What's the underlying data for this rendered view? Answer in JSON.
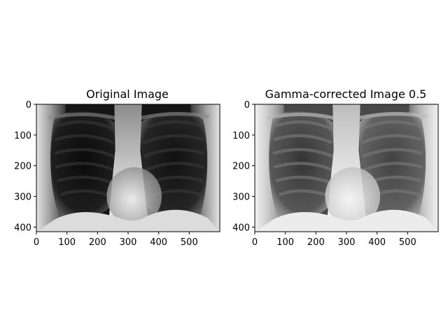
{
  "panels": [
    {
      "title": "Original Image",
      "gamma": 1.0,
      "x_ticks": [
        "0",
        "100",
        "200",
        "300",
        "400",
        "500"
      ],
      "y_ticks": [
        "0",
        "100",
        "200",
        "300",
        "400"
      ]
    },
    {
      "title": "Gamma-corrected Image 0.5",
      "gamma": 0.5,
      "x_ticks": [
        "0",
        "100",
        "200",
        "300",
        "400",
        "500"
      ],
      "y_ticks": [
        "0",
        "100",
        "200",
        "300",
        "400"
      ]
    }
  ]
}
